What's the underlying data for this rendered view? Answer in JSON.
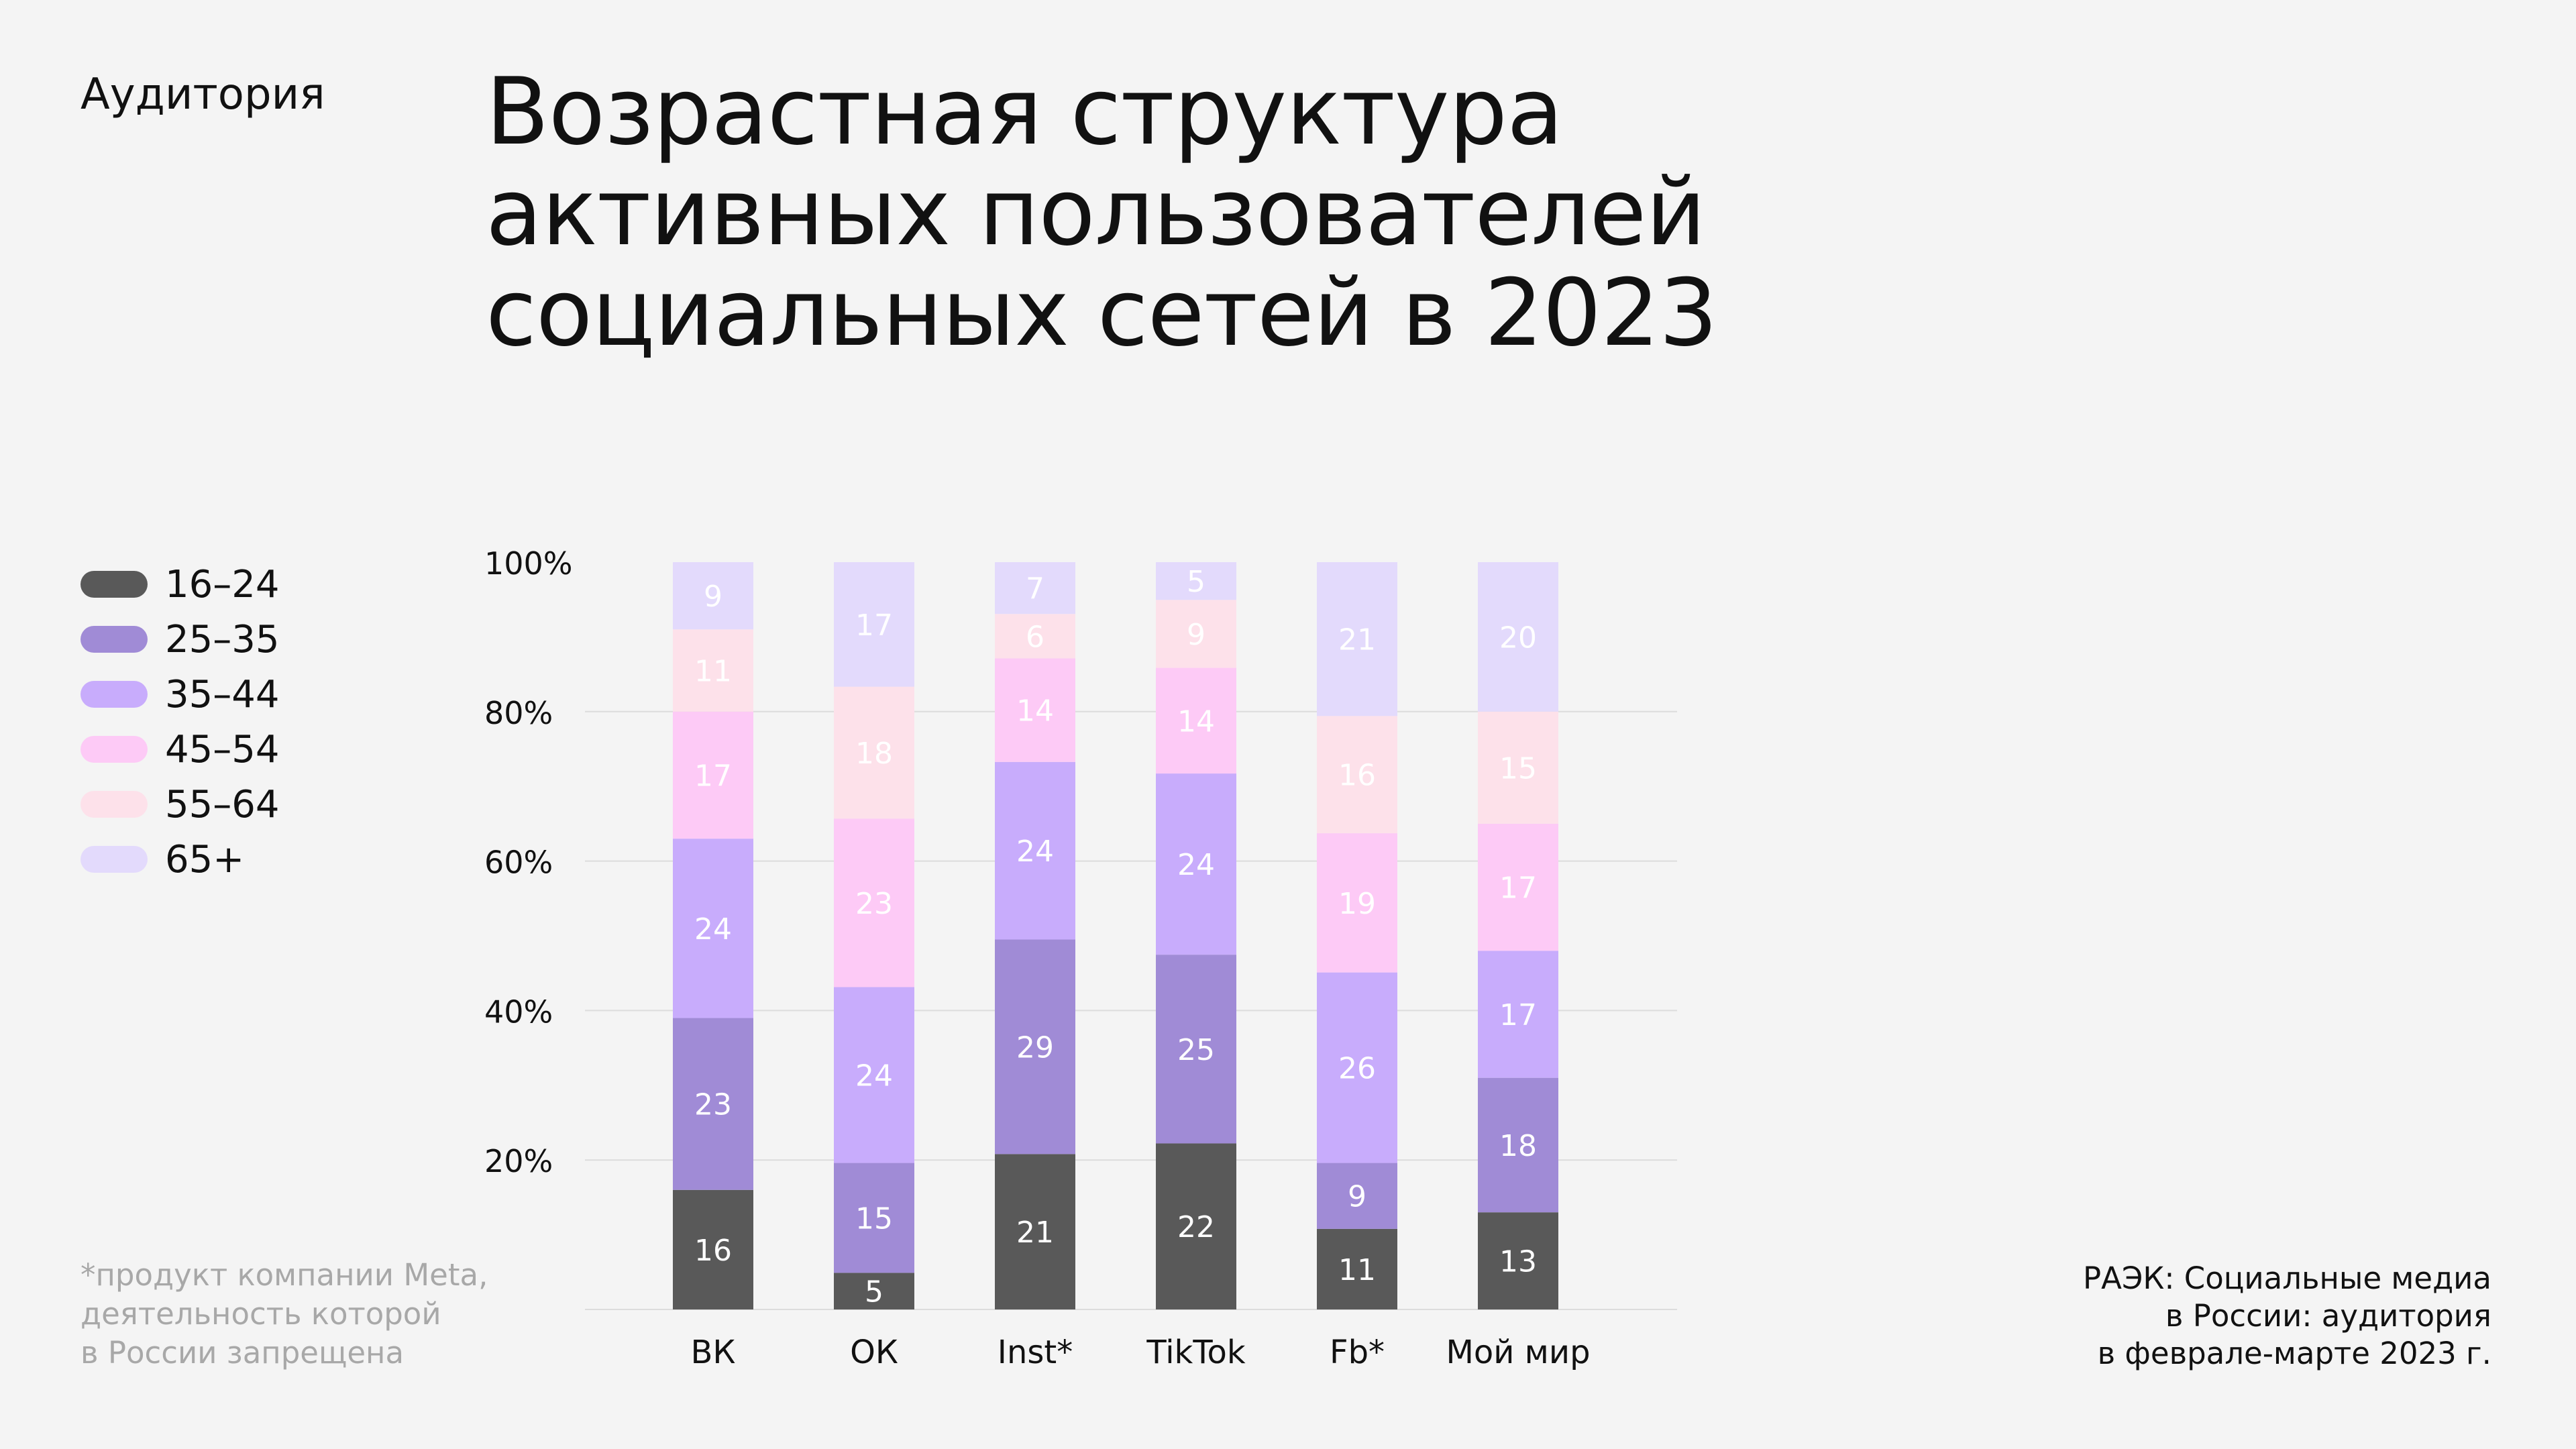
{
  "header": {
    "section_label": "Аудитория",
    "title_lines": [
      "Возрастная структура",
      "активных пользователей",
      "социальных сетей в 2023"
    ]
  },
  "footnote_lines": [
    "*продукт компании Meta,",
    "деятельность которой",
    "в России запрещена"
  ],
  "source_lines": [
    "РАЭК: Социальные медиа",
    "в России: аудитория",
    "в феврале-марте 2023 г."
  ],
  "colors": {
    "16–24": "#595959",
    "25–35": "#a08bd6",
    "35–44": "#c8acfc",
    "45–54": "#fdcaf6",
    "55–64": "#fde1ea",
    "65+": "#e3dafc",
    "background": "#f4f4f4",
    "gridline": "#dcdcdc"
  },
  "chart_data": {
    "type": "bar",
    "stacked": true,
    "categories": [
      "ВК",
      "ОК",
      "Inst*",
      "TikTok",
      "Fb*",
      "Мой мир"
    ],
    "series": [
      {
        "name": "16–24",
        "values": [
          16,
          5,
          21,
          22,
          11,
          13
        ]
      },
      {
        "name": "25–35",
        "values": [
          23,
          15,
          29,
          25,
          9,
          18
        ]
      },
      {
        "name": "35–44",
        "values": [
          24,
          24,
          24,
          24,
          26,
          17
        ]
      },
      {
        "name": "45–54",
        "values": [
          17,
          23,
          14,
          14,
          19,
          17
        ]
      },
      {
        "name": "55–64",
        "values": [
          11,
          18,
          6,
          9,
          16,
          15
        ]
      },
      {
        "name": "65+",
        "values": [
          9,
          17,
          7,
          5,
          21,
          20
        ]
      }
    ],
    "ylim": [
      0,
      100
    ],
    "yticks": [
      "20%",
      "40%",
      "60%",
      "80%",
      "100%"
    ],
    "legend_position": "left",
    "grid": true
  }
}
